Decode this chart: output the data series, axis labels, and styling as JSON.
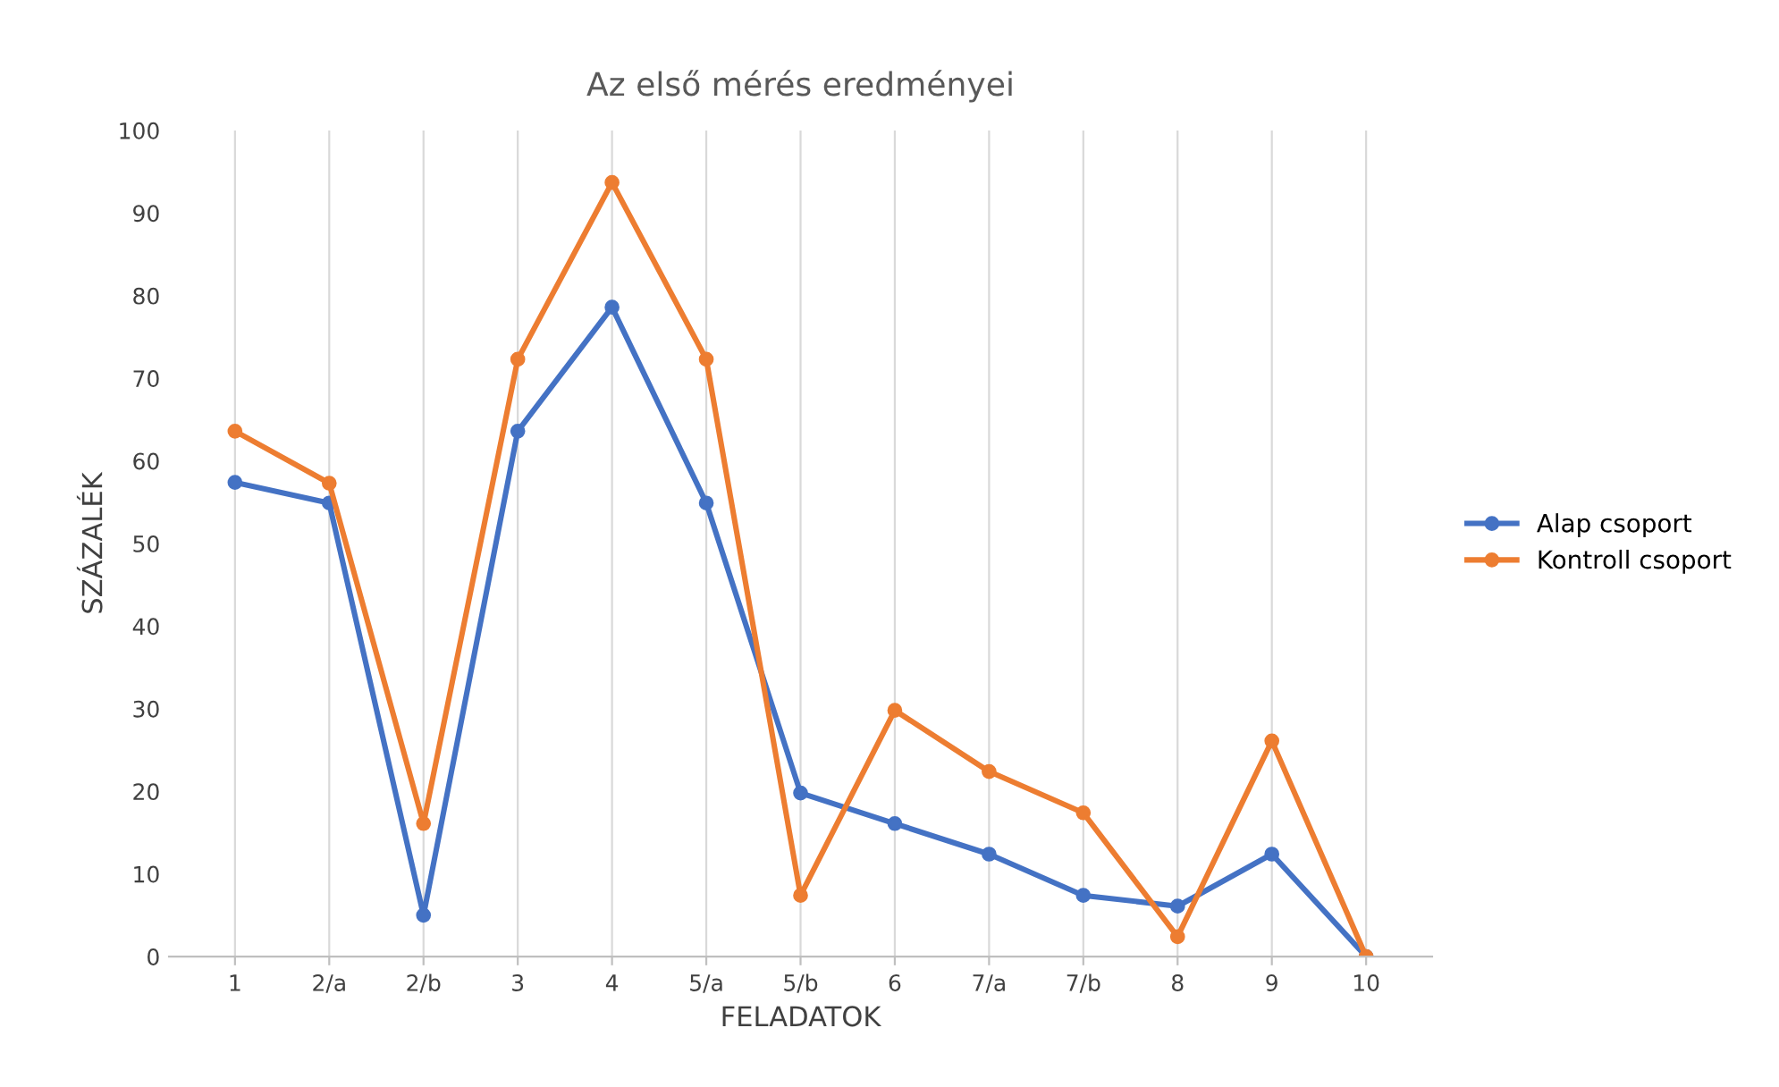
{
  "chart_data": {
    "type": "line",
    "title": "Az első mérés eredményei",
    "xlabel": "FELADATOK",
    "ylabel": "SZÁZALÉK",
    "categories": [
      "1",
      "2/a",
      "2/b",
      "3",
      "4",
      "5/a",
      "5/b",
      "6",
      "7/a",
      "7/b",
      "8",
      "9",
      "10"
    ],
    "series": [
      {
        "name": "Alap csoport",
        "color": "#4472c4",
        "values": [
          57.4,
          54.9,
          5.0,
          63.6,
          78.6,
          54.9,
          19.8,
          16.1,
          12.4,
          7.4,
          6.1,
          12.4,
          0
        ]
      },
      {
        "name": "Kontroll csoport",
        "color": "#ed7d31",
        "values": [
          63.6,
          57.3,
          16.1,
          72.3,
          93.7,
          72.3,
          7.4,
          29.8,
          22.4,
          17.4,
          2.4,
          26.1,
          0
        ]
      }
    ],
    "ylim": [
      0,
      100
    ],
    "yticks": [
      0,
      10,
      20,
      30,
      40,
      50,
      60,
      70,
      80,
      90,
      100
    ],
    "grid": "x",
    "legend": "right",
    "marker": "circle",
    "line_style": "solid"
  }
}
